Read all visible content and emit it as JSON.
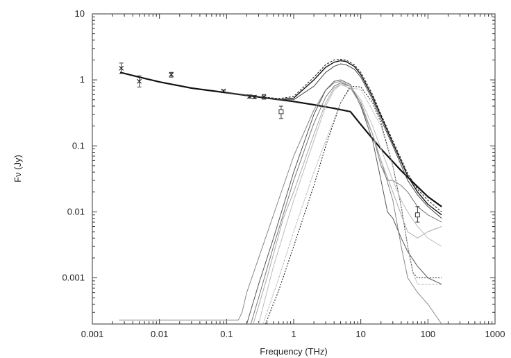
{
  "chart_data": {
    "type": "line",
    "title": "",
    "xlabel": "Frequency (THz)",
    "ylabel": "Fν (Jy)",
    "xscale": "log",
    "yscale": "log",
    "xlim": [
      0.001,
      1000
    ],
    "ylim": [
      0.0002,
      10
    ],
    "grid": false,
    "legend": "none",
    "xticks": [
      {
        "value": 0.001,
        "label": "0.001"
      },
      {
        "value": 0.01,
        "label": "0.01"
      },
      {
        "value": 0.1,
        "label": "0.1"
      },
      {
        "value": 1,
        "label": "1"
      },
      {
        "value": 10,
        "label": "10"
      },
      {
        "value": 100,
        "label": "100"
      },
      {
        "value": 1000,
        "label": "1000"
      }
    ],
    "yticks": [
      {
        "value": 0.001,
        "label": "0.001"
      },
      {
        "value": 0.01,
        "label": "0.01"
      },
      {
        "value": 0.1,
        "label": "0.1"
      },
      {
        "value": 1,
        "label": "1"
      },
      {
        "value": 10,
        "label": "10"
      }
    ],
    "series": [
      {
        "kind": "line",
        "color": "#111111",
        "width": 2.2,
        "x": [
          0.0026,
          0.005,
          0.01,
          0.03,
          0.1,
          0.3,
          1,
          2,
          4,
          7,
          10,
          20,
          40,
          70,
          100,
          160
        ],
        "y": [
          1.3,
          1.1,
          0.93,
          0.75,
          0.64,
          0.55,
          0.47,
          0.42,
          0.37,
          0.33,
          0.21,
          0.09,
          0.042,
          0.024,
          0.017,
          0.012
        ]
      },
      {
        "kind": "line",
        "color": "#111111",
        "width": 1.4,
        "x": [
          0.1,
          0.3,
          0.6,
          1,
          2,
          3,
          4,
          5,
          6,
          8,
          10,
          15,
          20,
          30,
          50,
          70,
          100,
          160
        ],
        "y": [
          0.64,
          0.55,
          0.5,
          0.53,
          1.0,
          1.55,
          1.85,
          1.95,
          1.9,
          1.6,
          1.2,
          0.55,
          0.28,
          0.11,
          0.035,
          0.02,
          0.013,
          0.009
        ]
      },
      {
        "kind": "line",
        "color": "#111111",
        "width": 1.0,
        "dash": "3,2",
        "x": [
          0.1,
          0.3,
          0.6,
          1,
          2,
          3,
          4,
          5,
          6,
          8,
          10,
          15,
          20,
          30,
          50,
          70,
          100,
          160
        ],
        "y": [
          0.64,
          0.56,
          0.52,
          0.56,
          1.1,
          1.7,
          2.0,
          2.05,
          2.0,
          1.7,
          1.3,
          0.6,
          0.3,
          0.12,
          0.038,
          0.022,
          0.015,
          0.01
        ]
      },
      {
        "kind": "line",
        "color": "#444444",
        "width": 1.0,
        "x": [
          0.1,
          0.3,
          0.6,
          1,
          2,
          3,
          4,
          5,
          6,
          8,
          10,
          15,
          20,
          30,
          50,
          70,
          100,
          160
        ],
        "y": [
          0.64,
          0.56,
          0.5,
          0.5,
          0.8,
          1.3,
          1.6,
          1.75,
          1.7,
          1.45,
          1.1,
          0.5,
          0.25,
          0.1,
          0.03,
          0.018,
          0.012,
          0.008
        ]
      },
      {
        "kind": "line",
        "color": "#111111",
        "width": 1.0,
        "dash": "2,2",
        "x": [
          0.38,
          0.6,
          1,
          2,
          3,
          5,
          7,
          10,
          15,
          20,
          30,
          40,
          50,
          60,
          70,
          100,
          160
        ],
        "y": [
          0.0002,
          0.00065,
          0.003,
          0.025,
          0.1,
          0.45,
          0.8,
          0.78,
          0.45,
          0.22,
          0.05,
          0.012,
          0.003,
          0.0012,
          0.001,
          0.001,
          0.001
        ]
      },
      {
        "kind": "line",
        "color": "#888888",
        "width": 1.0,
        "x": [
          0.0025,
          0.03,
          0.1,
          0.15,
          0.17,
          0.2,
          0.3,
          0.5,
          1,
          2,
          3,
          4,
          5,
          7,
          10,
          15,
          20,
          30,
          40,
          50,
          70,
          100,
          160
        ],
        "y": [
          0.00023,
          0.00023,
          0.00023,
          0.00023,
          0.0003,
          0.0006,
          0.002,
          0.009,
          0.07,
          0.35,
          0.7,
          0.9,
          0.95,
          0.8,
          0.4,
          0.15,
          0.06,
          0.015,
          0.003,
          0.001,
          0.0006,
          0.0004,
          0.0002
        ]
      },
      {
        "kind": "line",
        "color": "#555555",
        "width": 1.0,
        "x": [
          0.2,
          0.3,
          0.5,
          1,
          2,
          3,
          4,
          5,
          7,
          10,
          15,
          20,
          25,
          30,
          40,
          50,
          70,
          100,
          160
        ],
        "y": [
          0.0002,
          0.0008,
          0.004,
          0.04,
          0.3,
          0.7,
          0.95,
          1.0,
          0.85,
          0.4,
          0.12,
          0.03,
          0.01,
          0.008,
          0.004,
          0.0025,
          0.0015,
          0.001,
          0.0008
        ]
      },
      {
        "kind": "line",
        "color": "#777777",
        "width": 1.0,
        "x": [
          0.23,
          0.3,
          0.5,
          1,
          2,
          3,
          4,
          5,
          7,
          10,
          15,
          20,
          25,
          30,
          40,
          50,
          70,
          100,
          160
        ],
        "y": [
          0.0002,
          0.0005,
          0.003,
          0.03,
          0.22,
          0.55,
          0.8,
          0.9,
          0.8,
          0.45,
          0.15,
          0.05,
          0.03,
          0.03,
          0.025,
          0.02,
          0.012,
          0.009,
          0.007
        ]
      },
      {
        "kind": "line",
        "color": "#aaaaaa",
        "width": 1.0,
        "x": [
          0.25,
          0.4,
          0.7,
          1,
          2,
          3,
          4,
          5,
          7,
          10,
          15,
          20,
          30,
          40,
          50,
          70,
          100,
          160
        ],
        "y": [
          0.0002,
          0.001,
          0.008,
          0.02,
          0.15,
          0.45,
          0.75,
          0.85,
          0.75,
          0.42,
          0.15,
          0.06,
          0.02,
          0.009,
          0.005,
          0.004,
          0.005,
          0.006
        ]
      },
      {
        "kind": "line",
        "color": "#bbbbbb",
        "width": 1.0,
        "x": [
          0.3,
          0.5,
          1,
          2,
          3,
          4,
          5,
          7,
          10,
          15,
          20,
          30,
          40,
          50,
          70,
          100,
          160
        ],
        "y": [
          0.0002,
          0.0015,
          0.015,
          0.12,
          0.4,
          0.7,
          0.85,
          0.8,
          0.5,
          0.2,
          0.09,
          0.03,
          0.015,
          0.01,
          0.006,
          0.004,
          0.003
        ]
      },
      {
        "kind": "line",
        "color": "#999999",
        "width": 1.0,
        "dash": "1,1",
        "x": [
          0.35,
          0.6,
          1,
          2,
          3,
          5,
          7,
          10,
          20,
          30,
          40,
          50,
          60,
          70,
          100,
          160
        ],
        "y": [
          0.0002,
          0.001,
          0.005,
          0.04,
          0.12,
          0.45,
          0.75,
          0.72,
          0.2,
          0.05,
          0.012,
          0.003,
          0.0012,
          0.0008,
          0.0008,
          0.0008
        ]
      },
      {
        "kind": "points",
        "marker": "x",
        "x": [
          0.0027,
          0.005,
          0.015,
          0.09,
          0.22,
          0.26,
          0.36
        ],
        "y": [
          1.5,
          0.95,
          1.2,
          0.68,
          0.56,
          0.55,
          0.55
        ],
        "yerr_low": [
          1.25,
          0.78,
          1.1,
          0.66,
          0.53,
          0.52,
          0.51
        ],
        "yerr_high": [
          1.8,
          1.15,
          1.3,
          0.7,
          0.59,
          0.58,
          0.6
        ]
      },
      {
        "kind": "points",
        "marker": "square",
        "x": [
          0.65,
          70
        ],
        "y": [
          0.33,
          0.009
        ],
        "yerr_low": [
          0.26,
          0.007
        ],
        "yerr_high": [
          0.4,
          0.012
        ]
      }
    ]
  }
}
